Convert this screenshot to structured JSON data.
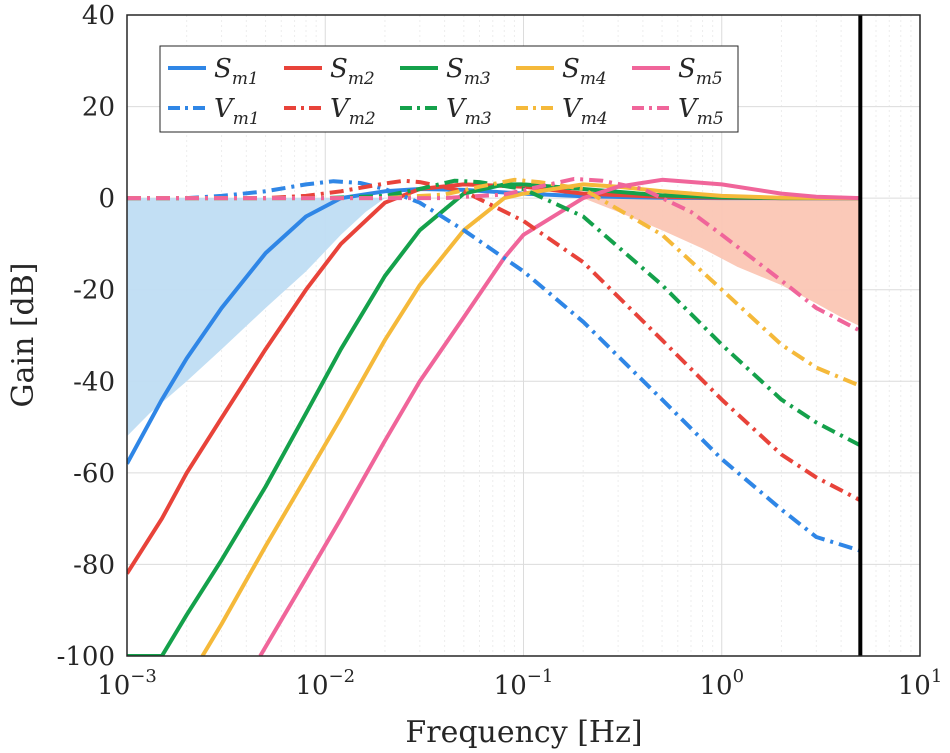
{
  "chart_data": {
    "type": "line",
    "xlabel": "Frequency [Hz]",
    "ylabel": "Gain [dB]",
    "x_scale": "log",
    "xlim": [
      0.001,
      10
    ],
    "ylim": [
      -100,
      40
    ],
    "y_ticks": [
      "-100",
      "-80",
      "-60",
      "-40",
      "-20",
      "0",
      "20",
      "40"
    ],
    "x_ticks": [
      {
        "base": "10",
        "exp": "−3"
      },
      {
        "base": "10",
        "exp": "−2"
      },
      {
        "base": "10",
        "exp": "−1"
      },
      {
        "base": "10",
        "exp": "0"
      },
      {
        "base": "10",
        "exp": "1"
      }
    ],
    "grid": true,
    "legend_position": "top-left",
    "vertical_marker_hz": 5,
    "shaded_regions": [
      {
        "color": "#BFDDF3",
        "x": [
          0.001,
          0.0013,
          0.002,
          0.003,
          0.005,
          0.008,
          0.012,
          0.016,
          0.02
        ],
        "y_lower": [
          -52,
          -47,
          -40,
          -33,
          -24,
          -16,
          -8,
          -3,
          0
        ]
      },
      {
        "color": "#FBC6B4",
        "x": [
          0.2,
          0.3,
          0.5,
          0.8,
          1.2,
          2,
          3,
          4,
          5
        ],
        "y_lower": [
          0,
          -3,
          -7,
          -11,
          -15,
          -19,
          -23,
          -26,
          -28
        ]
      }
    ],
    "series": [
      {
        "name": "S",
        "sub": "m1",
        "color": "#2F86E6",
        "style": "solid",
        "x": [
          0.001,
          0.0015,
          0.002,
          0.003,
          0.005,
          0.008,
          0.012,
          0.02,
          0.03,
          0.05,
          0.1,
          0.2,
          0.5,
          1,
          2,
          5
        ],
        "y": [
          -58,
          -44,
          -35,
          -24,
          -12,
          -4,
          0,
          1.5,
          2,
          1.8,
          1,
          0.4,
          0.1,
          0,
          0,
          0
        ]
      },
      {
        "name": "S",
        "sub": "m2",
        "color": "#E8433A",
        "style": "solid",
        "x": [
          0.001,
          0.0015,
          0.002,
          0.003,
          0.005,
          0.008,
          0.012,
          0.02,
          0.03,
          0.05,
          0.1,
          0.2,
          0.5,
          1,
          2,
          5
        ],
        "y": [
          -82,
          -70,
          -60,
          -48,
          -33,
          -20,
          -10,
          -1,
          2,
          3,
          2.5,
          1,
          0.3,
          0.1,
          0,
          0
        ]
      },
      {
        "name": "S",
        "sub": "m3",
        "color": "#14A14B",
        "style": "solid",
        "x": [
          0.001,
          0.0015,
          0.002,
          0.003,
          0.005,
          0.008,
          0.012,
          0.02,
          0.03,
          0.05,
          0.08,
          0.1,
          0.2,
          0.5,
          1,
          2,
          5
        ],
        "y": [
          -100,
          -100,
          -91,
          -79,
          -63,
          -47,
          -33,
          -17,
          -7,
          1,
          3,
          3,
          2,
          0.6,
          0.2,
          0,
          0
        ]
      },
      {
        "name": "S",
        "sub": "m4",
        "color": "#F5B93A",
        "style": "solid",
        "x": [
          0.0024,
          0.003,
          0.005,
          0.008,
          0.012,
          0.02,
          0.03,
          0.05,
          0.08,
          0.1,
          0.2,
          0.3,
          0.5,
          1,
          2,
          5
        ],
        "y": [
          -100,
          -93,
          -76,
          -61,
          -48,
          -31,
          -19,
          -7,
          0,
          1,
          3,
          2.5,
          1.5,
          0.5,
          0.1,
          0
        ]
      },
      {
        "name": "S",
        "sub": "m5",
        "color": "#F0659A",
        "style": "solid",
        "x": [
          0.0047,
          0.008,
          0.012,
          0.02,
          0.03,
          0.05,
          0.08,
          0.1,
          0.2,
          0.3,
          0.5,
          1,
          2,
          3,
          5
        ],
        "y": [
          -100,
          -83,
          -70,
          -53,
          -40,
          -26,
          -13,
          -8,
          0,
          2.5,
          4,
          3,
          1,
          0.3,
          0
        ]
      },
      {
        "name": "V",
        "sub": "m1",
        "color": "#2F86E6",
        "style": "dashdot",
        "x": [
          0.001,
          0.002,
          0.003,
          0.005,
          0.008,
          0.011,
          0.015,
          0.02,
          0.03,
          0.05,
          0.1,
          0.2,
          0.5,
          1,
          2,
          3,
          5
        ],
        "y": [
          0,
          0,
          0.5,
          1.5,
          3,
          3.7,
          3.3,
          2,
          -1,
          -7,
          -16,
          -27,
          -44,
          -57,
          -68,
          -74,
          -77
        ]
      },
      {
        "name": "V",
        "sub": "m2",
        "color": "#E8433A",
        "style": "dashdot",
        "x": [
          0.001,
          0.005,
          0.008,
          0.012,
          0.02,
          0.025,
          0.03,
          0.05,
          0.1,
          0.2,
          0.5,
          1,
          2,
          3,
          5
        ],
        "y": [
          0,
          0,
          0.5,
          1.5,
          3.2,
          3.8,
          3.5,
          1.5,
          -5,
          -14,
          -31,
          -44,
          -56,
          -61,
          -66
        ]
      },
      {
        "name": "V",
        "sub": "m3",
        "color": "#14A14B",
        "style": "dashdot",
        "x": [
          0.001,
          0.01,
          0.02,
          0.03,
          0.045,
          0.06,
          0.1,
          0.2,
          0.5,
          1,
          2,
          3,
          5
        ],
        "y": [
          0,
          0,
          0.5,
          2,
          3.8,
          3.5,
          2,
          -4,
          -19,
          -32,
          -44,
          -49,
          -54
        ]
      },
      {
        "name": "V",
        "sub": "m4",
        "color": "#F5B93A",
        "style": "dashdot",
        "x": [
          0.001,
          0.02,
          0.04,
          0.06,
          0.09,
          0.12,
          0.2,
          0.5,
          1,
          2,
          3,
          5
        ],
        "y": [
          0,
          0,
          0.8,
          2.5,
          4,
          3.5,
          2,
          -8,
          -20,
          -32,
          -37,
          -41
        ]
      },
      {
        "name": "V",
        "sub": "m5",
        "color": "#F0659A",
        "style": "dashdot",
        "x": [
          0.001,
          0.04,
          0.08,
          0.12,
          0.18,
          0.25,
          0.4,
          0.7,
          1,
          2,
          3,
          5
        ],
        "y": [
          0,
          0,
          0.8,
          2.5,
          4.2,
          3.8,
          2,
          -3,
          -8,
          -18,
          -24,
          -29
        ]
      }
    ]
  }
}
